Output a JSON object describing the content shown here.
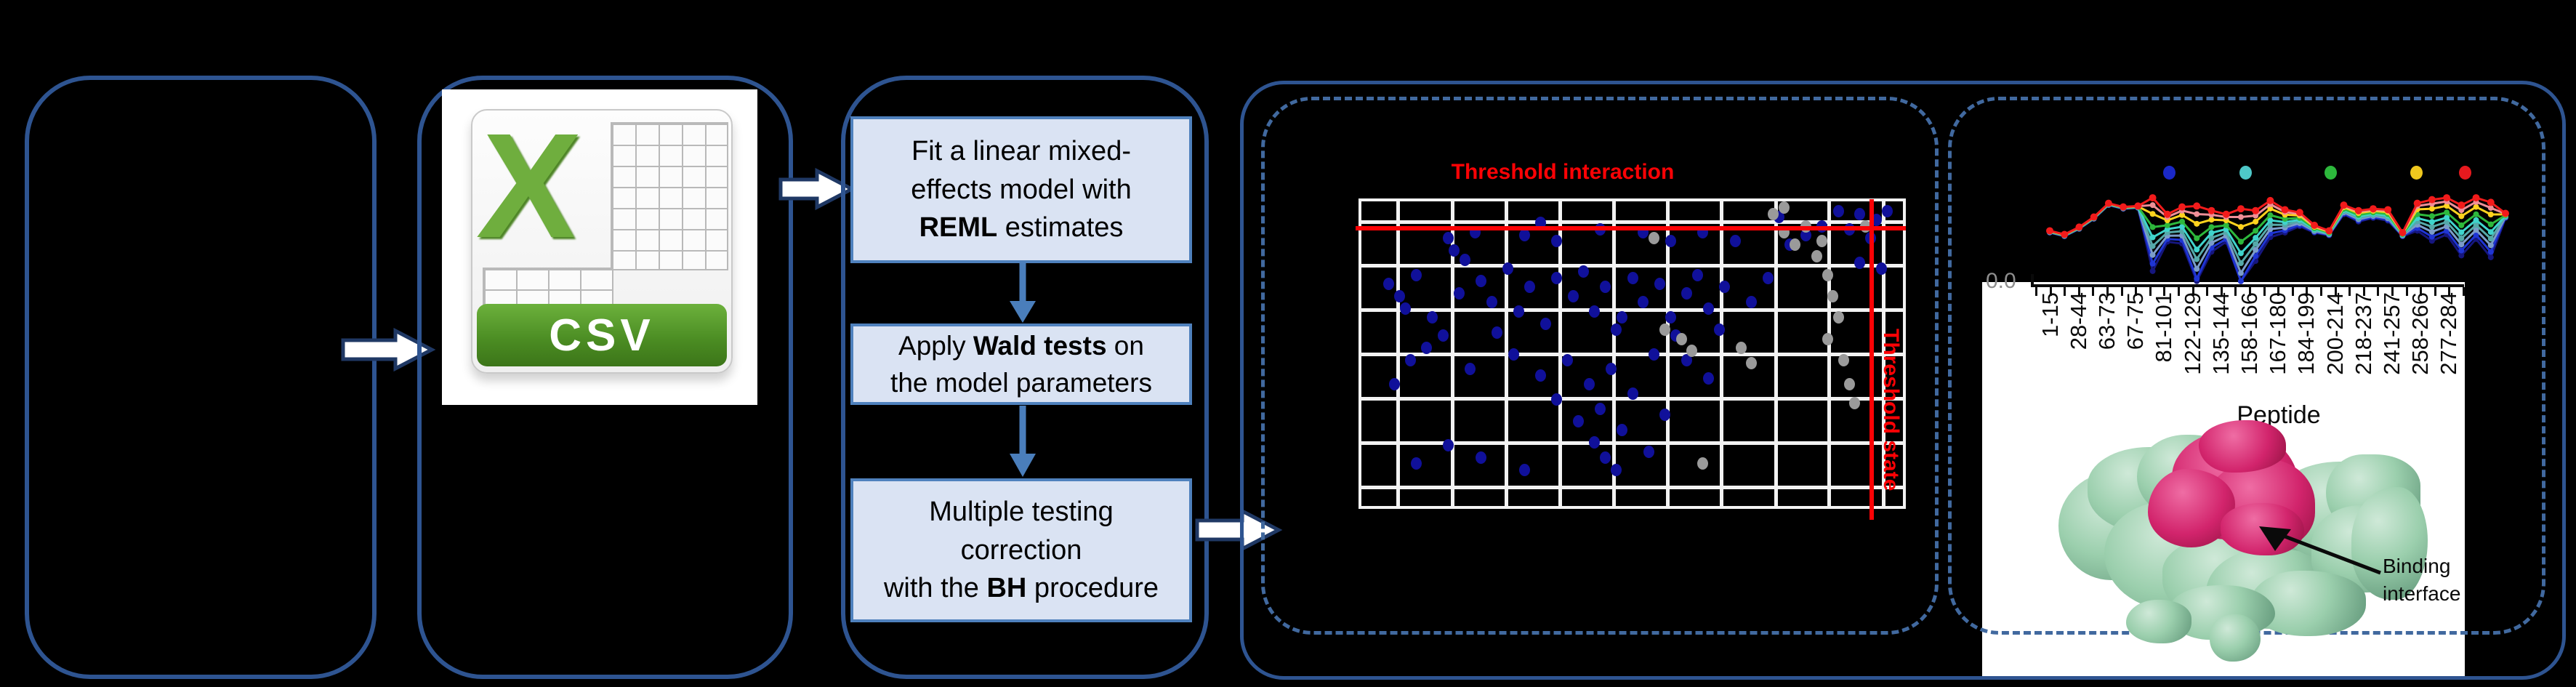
{
  "flowchart": {
    "steps": [
      {
        "lines": [
          [
            {
              "t": "Fit a linear mixed-"
            }
          ],
          [
            {
              "t": "effects model with"
            }
          ],
          [
            {
              "t": "REML",
              "b": true
            },
            {
              "t": " estimates"
            }
          ]
        ]
      },
      {
        "lines": [
          [
            {
              "t": "Apply "
            },
            {
              "t": "Wald tests",
              "b": true
            },
            {
              "t": " on"
            }
          ],
          [
            {
              "t": "the model parameters"
            }
          ]
        ]
      },
      {
        "lines": [
          [
            {
              "t": "Multiple testing"
            }
          ],
          [
            {
              "t": "correction"
            }
          ],
          [
            {
              "t": "with the "
            },
            {
              "t": "BH",
              "b": true
            },
            {
              "t": " procedure"
            }
          ]
        ]
      }
    ]
  },
  "csv_icon": {
    "letter": "X",
    "label": "CSV"
  },
  "scatter": {
    "title": "Threshold interaction",
    "vline_label": "Threshold state",
    "accent_color": "#fb0205",
    "blue_dot_color": "#10109a",
    "gray_dot_color": "#9a9a9a",
    "grid_fx": [
      0.065,
      0.165,
      0.264,
      0.364,
      0.463,
      0.563,
      0.662,
      0.762,
      0.861,
      0.961
    ],
    "grid_fy": [
      0.061,
      0.206,
      0.351,
      0.496,
      0.642,
      0.787,
      0.932
    ],
    "threshold_h_fy": 0.094,
    "threshold_v_fx": 0.937,
    "blue_dots": [
      [
        0.16,
        0.12
      ],
      [
        0.17,
        0.16
      ],
      [
        0.19,
        0.19
      ],
      [
        0.21,
        0.1
      ],
      [
        0.3,
        0.11
      ],
      [
        0.33,
        0.07
      ],
      [
        0.36,
        0.13
      ],
      [
        0.44,
        0.09
      ],
      [
        0.52,
        0.1
      ],
      [
        0.57,
        0.13
      ],
      [
        0.63,
        0.1
      ],
      [
        0.69,
        0.13
      ],
      [
        0.77,
        0.05
      ],
      [
        0.88,
        0.03
      ],
      [
        0.92,
        0.04
      ],
      [
        0.95,
        0.06
      ],
      [
        0.97,
        0.03
      ],
      [
        0.9,
        0.09
      ],
      [
        0.94,
        0.12
      ],
      [
        0.85,
        0.08
      ],
      [
        0.82,
        0.11
      ],
      [
        0.79,
        0.14
      ],
      [
        0.05,
        0.27
      ],
      [
        0.07,
        0.31
      ],
      [
        0.08,
        0.35
      ],
      [
        0.1,
        0.24
      ],
      [
        0.13,
        0.38
      ],
      [
        0.18,
        0.3
      ],
      [
        0.22,
        0.26
      ],
      [
        0.24,
        0.33
      ],
      [
        0.27,
        0.22
      ],
      [
        0.29,
        0.36
      ],
      [
        0.31,
        0.28
      ],
      [
        0.34,
        0.4
      ],
      [
        0.36,
        0.25
      ],
      [
        0.39,
        0.31
      ],
      [
        0.41,
        0.23
      ],
      [
        0.43,
        0.36
      ],
      [
        0.45,
        0.28
      ],
      [
        0.47,
        0.42
      ],
      [
        0.5,
        0.25
      ],
      [
        0.52,
        0.33
      ],
      [
        0.55,
        0.27
      ],
      [
        0.57,
        0.38
      ],
      [
        0.6,
        0.3
      ],
      [
        0.62,
        0.24
      ],
      [
        0.64,
        0.35
      ],
      [
        0.67,
        0.28
      ],
      [
        0.72,
        0.33
      ],
      [
        0.75,
        0.25
      ],
      [
        0.66,
        0.42
      ],
      [
        0.58,
        0.44
      ],
      [
        0.48,
        0.38
      ],
      [
        0.25,
        0.43
      ],
      [
        0.15,
        0.44
      ],
      [
        0.92,
        0.2
      ],
      [
        0.96,
        0.22
      ],
      [
        0.09,
        0.52
      ],
      [
        0.12,
        0.48
      ],
      [
        0.2,
        0.55
      ],
      [
        0.28,
        0.5
      ],
      [
        0.33,
        0.57
      ],
      [
        0.38,
        0.52
      ],
      [
        0.42,
        0.6
      ],
      [
        0.46,
        0.55
      ],
      [
        0.5,
        0.63
      ],
      [
        0.54,
        0.5
      ],
      [
        0.44,
        0.68
      ],
      [
        0.4,
        0.72
      ],
      [
        0.36,
        0.65
      ],
      [
        0.56,
        0.7
      ],
      [
        0.6,
        0.52
      ],
      [
        0.48,
        0.75
      ],
      [
        0.06,
        0.6
      ],
      [
        0.64,
        0.58
      ],
      [
        0.16,
        0.8
      ],
      [
        0.22,
        0.84
      ],
      [
        0.3,
        0.88
      ],
      [
        0.43,
        0.79
      ],
      [
        0.45,
        0.84
      ],
      [
        0.47,
        0.88
      ],
      [
        0.53,
        0.82
      ],
      [
        0.1,
        0.86
      ]
    ],
    "gray_dots": [
      [
        0.7,
        0.48
      ],
      [
        0.72,
        0.53
      ],
      [
        0.59,
        0.45
      ],
      [
        0.61,
        0.49
      ],
      [
        0.56,
        0.42
      ],
      [
        0.78,
        0.1
      ],
      [
        0.8,
        0.14
      ],
      [
        0.82,
        0.08
      ],
      [
        0.84,
        0.18
      ],
      [
        0.86,
        0.24
      ],
      [
        0.87,
        0.31
      ],
      [
        0.88,
        0.38
      ],
      [
        0.86,
        0.45
      ],
      [
        0.89,
        0.52
      ],
      [
        0.9,
        0.6
      ],
      [
        0.91,
        0.66
      ],
      [
        0.63,
        0.86
      ],
      [
        0.85,
        0.13
      ],
      [
        0.93,
        0.08
      ],
      [
        0.54,
        0.12
      ],
      [
        0.76,
        0.04
      ],
      [
        0.78,
        0.02
      ]
    ]
  },
  "chart_data": {
    "type": "line",
    "title": "",
    "xlabel": "Peptide",
    "ylabel": "0.0",
    "x_tick_labels": [
      "1-15",
      "28-44",
      "63-73",
      "67-75",
      "81-101",
      "122-129",
      "135-144",
      "158-166",
      "167-180",
      "184-199",
      "200-214",
      "218-237",
      "241-257",
      "258-266",
      "277-284"
    ],
    "legend_dot_colors": [
      "#1a28c8",
      "#4ec8c8",
      "#2db83c",
      "#f0c81e",
      "#e8191e"
    ],
    "n_points": 32,
    "base_from_top_pct": [
      44,
      48,
      40,
      29,
      14,
      18,
      17,
      8,
      26,
      18,
      17,
      22,
      26,
      20,
      22,
      11,
      21,
      24,
      38,
      44,
      16,
      22,
      20,
      21,
      46,
      14,
      10,
      8,
      16,
      8,
      13,
      25
    ],
    "gap_pct": [
      2,
      2,
      2,
      2,
      2,
      2,
      2,
      80,
      30,
      40,
      88,
      45,
      30,
      90,
      55,
      40,
      25,
      15,
      8,
      5,
      10,
      12,
      10,
      12,
      4,
      30,
      45,
      40,
      55,
      45,
      60,
      5
    ],
    "series": [
      {
        "name": "navy",
        "color": "#16167e",
        "spread": 1.0
      },
      {
        "name": "blue",
        "color": "#1f35d4",
        "spread": 0.9
      },
      {
        "name": "steel",
        "color": "#7b9cc9",
        "spread": 0.78
      },
      {
        "name": "teal",
        "color": "#55a9a9",
        "spread": 0.66
      },
      {
        "name": "cyan",
        "color": "#3fd4cc",
        "spread": 0.54
      },
      {
        "name": "green",
        "color": "#2db83c",
        "spread": 0.4
      },
      {
        "name": "yellow",
        "color": "#ffd21e",
        "spread": 0.22
      },
      {
        "name": "salmon",
        "color": "#ef8f97",
        "spread": 0.1
      },
      {
        "name": "red",
        "color": "#f21b1b",
        "spread": 0.0
      }
    ]
  },
  "protein": {
    "annotation_line1": "Binding",
    "annotation_line2": "interface"
  }
}
